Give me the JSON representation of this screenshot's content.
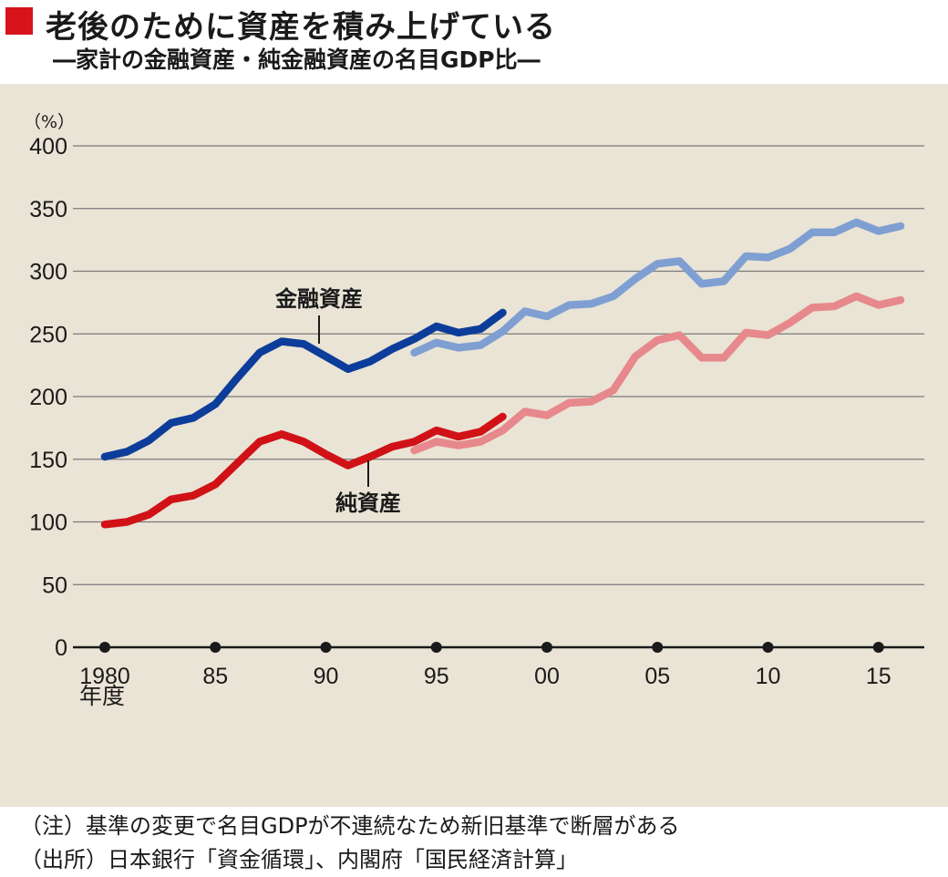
{
  "header": {
    "title": "老後のために資産を積み上げている",
    "subtitle": "―家計の金融資産・純金融資産の名目GDP比―"
  },
  "notes": {
    "note": "（注）基準の変更で名目GDPが不連続なため新旧基準で断層がある",
    "source": "（出所）日本銀行「資金循環」、内閣府「国民経済計算」"
  },
  "colors": {
    "title_mark": "#d7141c",
    "background": "#e9e4d5",
    "gross_old": "#0d3d9a",
    "gross_new": "#7f9fd3",
    "net_old": "#d01217",
    "net_new": "#e7888c",
    "grid": "#7a7a7a"
  },
  "chart_data": {
    "type": "line",
    "title": "老後のために資産を積み上げている",
    "subtitle": "―家計の金融資産・純金融資産の名目GDP比―",
    "y_unit": "（%）",
    "ylim": [
      0,
      400
    ],
    "y_ticks": [
      0,
      50,
      100,
      150,
      200,
      250,
      300,
      350,
      400
    ],
    "x_ticks": [
      {
        "year": 1980,
        "label": "1980"
      },
      {
        "year": 1985,
        "label": "85"
      },
      {
        "year": 1990,
        "label": "90"
      },
      {
        "year": 1995,
        "label": "95"
      },
      {
        "year": 2000,
        "label": "00"
      },
      {
        "year": 2005,
        "label": "05"
      },
      {
        "year": 2010,
        "label": "10"
      },
      {
        "year": 2015,
        "label": "15"
      }
    ],
    "x_unit": "年度",
    "xlim": [
      1980,
      2016
    ],
    "grid": true,
    "annotations": [
      {
        "text": "金融資産",
        "series": "gross"
      },
      {
        "text": "純資産",
        "series": "net"
      }
    ],
    "series": [
      {
        "key": "gross_old",
        "label_ref": "gross",
        "x": [
          1980,
          1981,
          1982,
          1983,
          1984,
          1985,
          1986,
          1987,
          1988,
          1989,
          1990,
          1991,
          1992,
          1993,
          1994,
          1995,
          1996,
          1997,
          1998
        ],
        "values": [
          152,
          156,
          165,
          179,
          183,
          194,
          215,
          235,
          244,
          242,
          232,
          222,
          228,
          238,
          246,
          256,
          251,
          254,
          267
        ]
      },
      {
        "key": "gross_new",
        "label_ref": "gross",
        "x": [
          1994,
          1995,
          1996,
          1997,
          1998,
          1999,
          2000,
          2001,
          2002,
          2003,
          2004,
          2005,
          2006,
          2007,
          2008,
          2009,
          2010,
          2011,
          2012,
          2013,
          2014,
          2015,
          2016
        ],
        "values": [
          235,
          243,
          239,
          241,
          252,
          268,
          264,
          273,
          274,
          280,
          294,
          306,
          308,
          290,
          292,
          312,
          311,
          318,
          331,
          331,
          339,
          332,
          336
        ]
      },
      {
        "key": "net_old",
        "label_ref": "net",
        "x": [
          1980,
          1981,
          1982,
          1983,
          1984,
          1985,
          1986,
          1987,
          1988,
          1989,
          1990,
          1991,
          1992,
          1993,
          1994,
          1995,
          1996,
          1997,
          1998
        ],
        "values": [
          98,
          100,
          106,
          118,
          121,
          130,
          147,
          164,
          170,
          164,
          154,
          145,
          152,
          160,
          164,
          173,
          168,
          172,
          184
        ]
      },
      {
        "key": "net_new",
        "label_ref": "net",
        "x": [
          1994,
          1995,
          1996,
          1997,
          1998,
          1999,
          2000,
          2001,
          2002,
          2003,
          2004,
          2005,
          2006,
          2007,
          2008,
          2009,
          2010,
          2011,
          2012,
          2013,
          2014,
          2015,
          2016
        ],
        "values": [
          157,
          164,
          161,
          164,
          173,
          188,
          185,
          195,
          196,
          205,
          232,
          245,
          249,
          231,
          231,
          251,
          249,
          259,
          271,
          272,
          280,
          273,
          277
        ]
      }
    ]
  }
}
